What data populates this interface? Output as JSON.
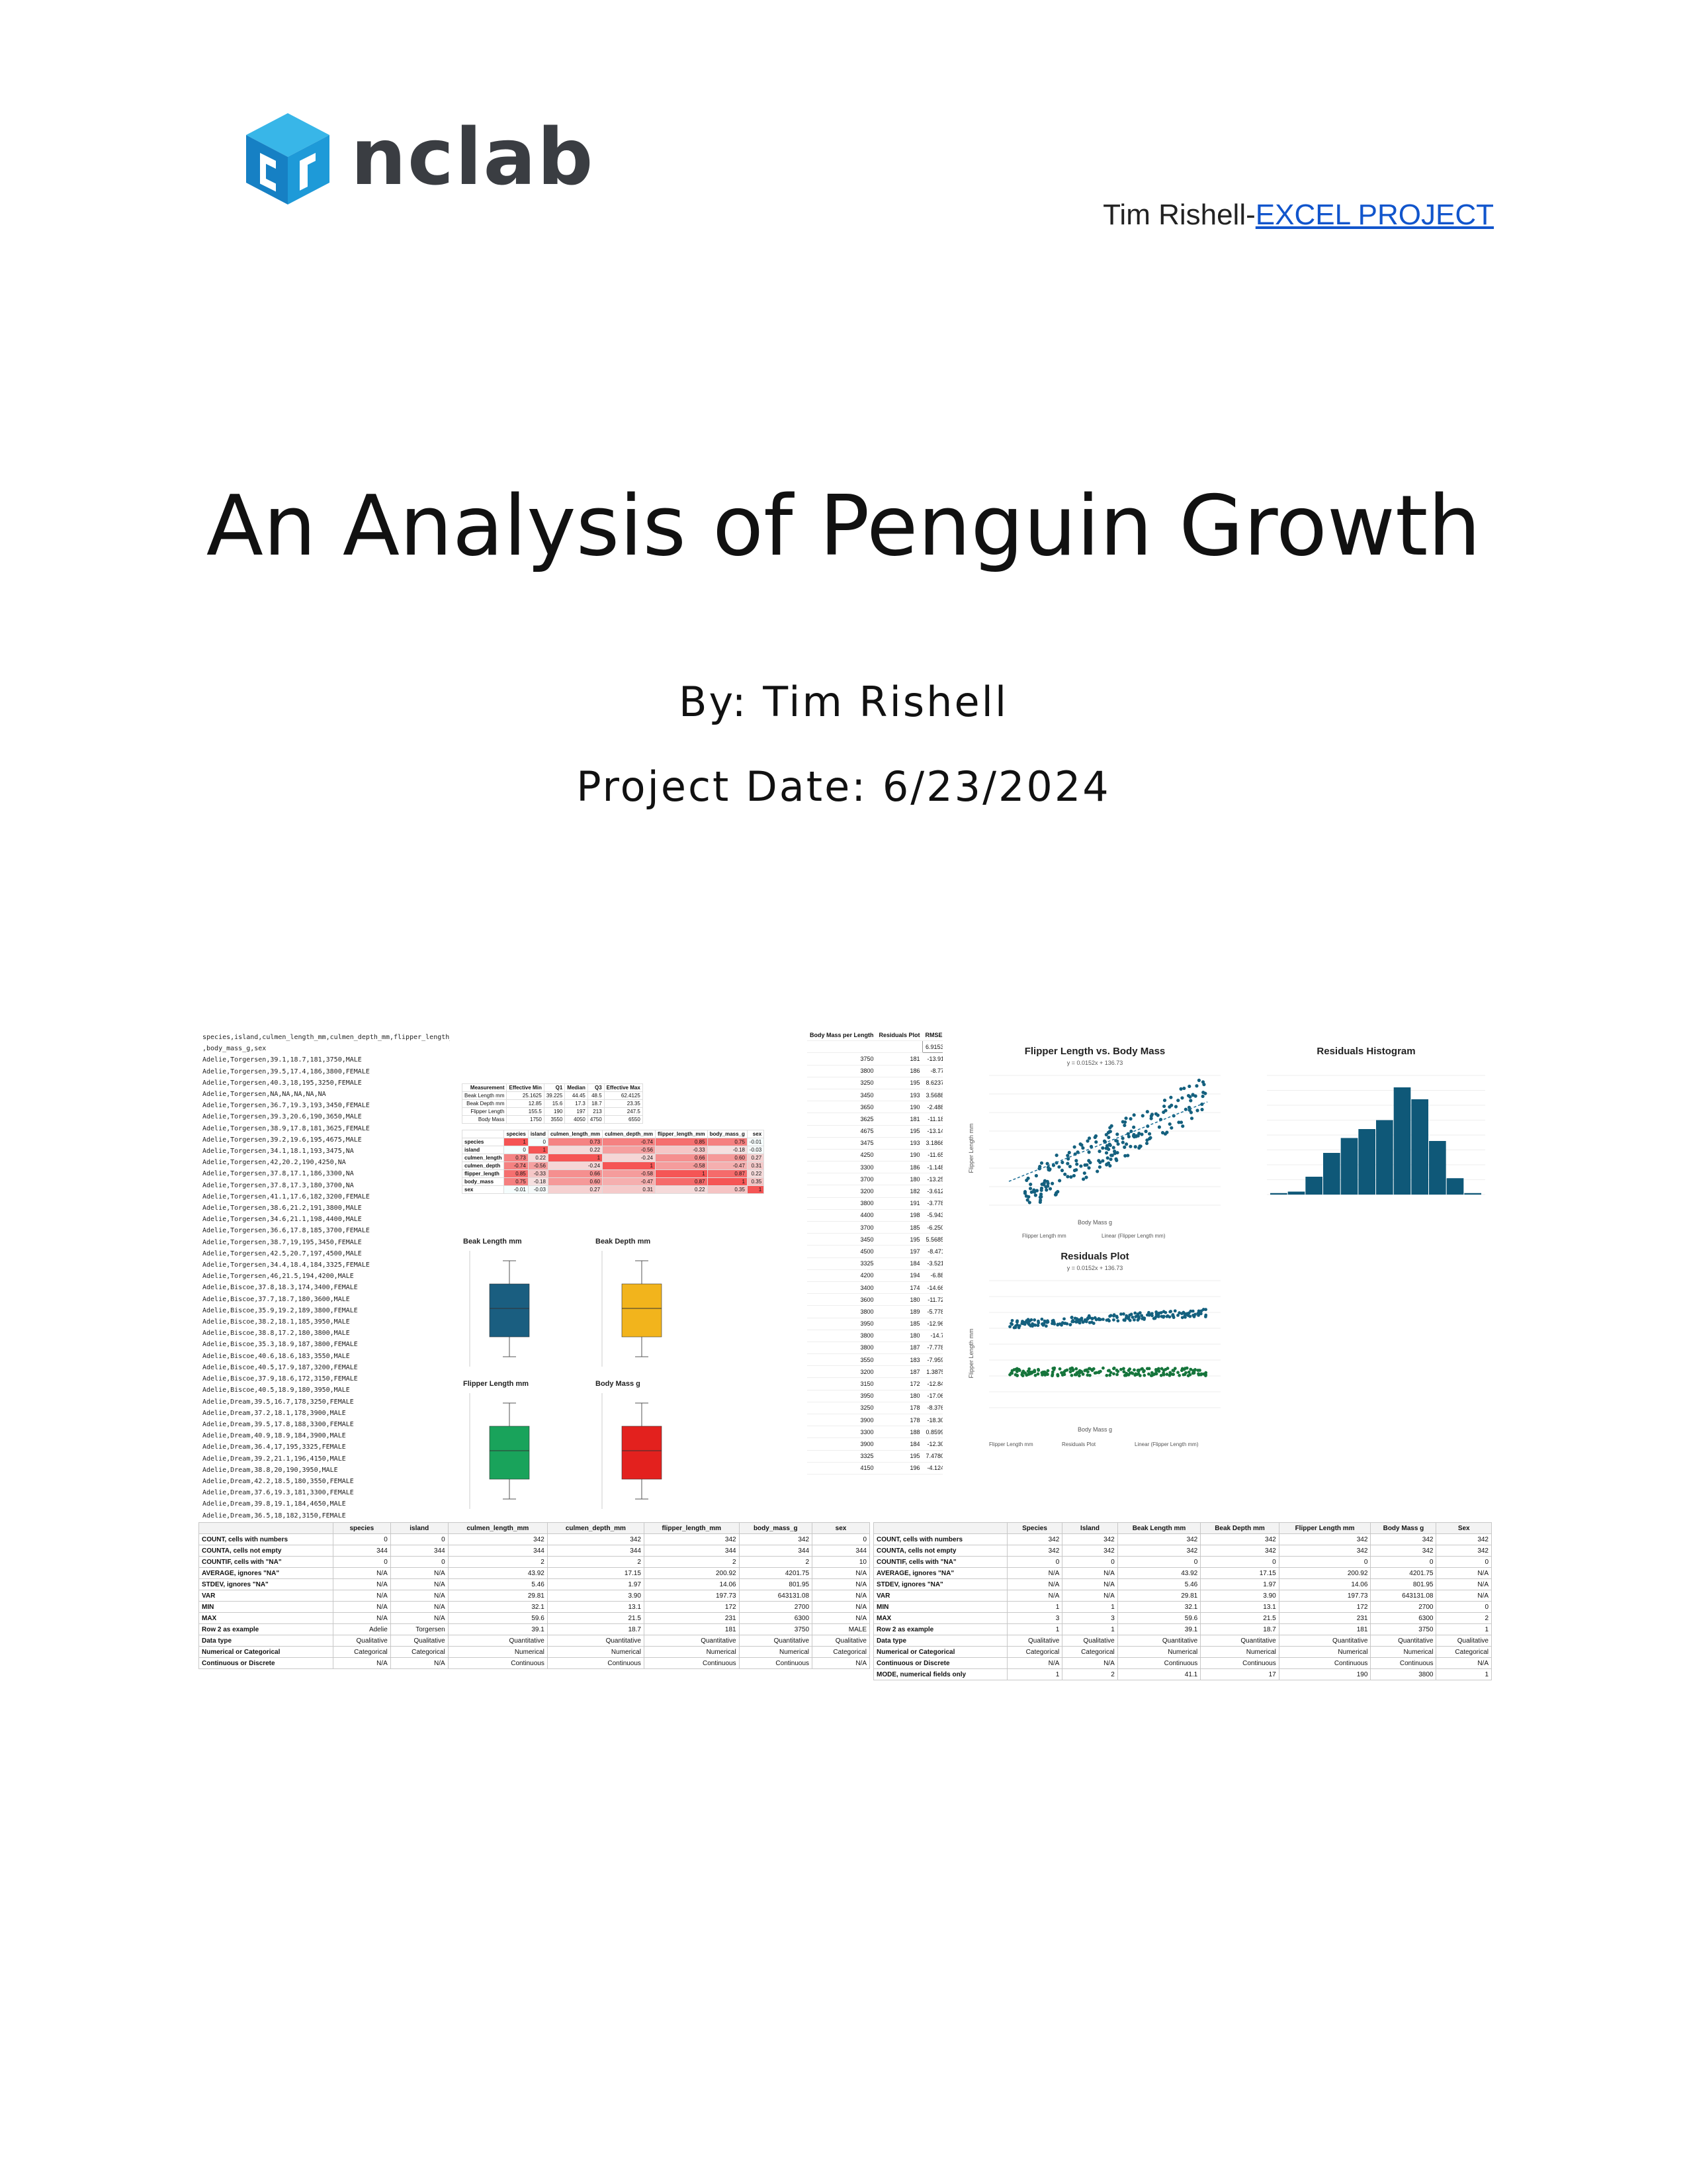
{
  "logo": {
    "wordmark": "nclab"
  },
  "header": {
    "author_prefix": "Tim Rishell-",
    "project_link": "EXCEL PROJECT"
  },
  "title": "An Analysis of Penguin Growth",
  "byline": "By: Tim Rishell",
  "project_date": "Project Date: 6/23/2024",
  "collage": {
    "csv_lines": [
      "species,island,culmen_length_mm,culmen_depth_mm,flipper_length_mm",
      ",body_mass_g,sex",
      "Adelie,Torgersen,39.1,18.7,181,3750,MALE",
      "Adelie,Torgersen,39.5,17.4,186,3800,FEMALE",
      "Adelie,Torgersen,40.3,18,195,3250,FEMALE",
      "Adelie,Torgersen,NA,NA,NA,NA,NA",
      "Adelie,Torgersen,36.7,19.3,193,3450,FEMALE",
      "Adelie,Torgersen,39.3,20.6,190,3650,MALE",
      "Adelie,Torgersen,38.9,17.8,181,3625,FEMALE",
      "Adelie,Torgersen,39.2,19.6,195,4675,MALE",
      "Adelie,Torgersen,34.1,18.1,193,3475,NA",
      "Adelie,Torgersen,42,20.2,190,4250,NA",
      "Adelie,Torgersen,37.8,17.1,186,3300,NA",
      "Adelie,Torgersen,37.8,17.3,180,3700,NA",
      "Adelie,Torgersen,41.1,17.6,182,3200,FEMALE",
      "Adelie,Torgersen,38.6,21.2,191,3800,MALE",
      "Adelie,Torgersen,34.6,21.1,198,4400,MALE",
      "Adelie,Torgersen,36.6,17.8,185,3700,FEMALE",
      "Adelie,Torgersen,38.7,19,195,3450,FEMALE",
      "Adelie,Torgersen,42.5,20.7,197,4500,MALE",
      "Adelie,Torgersen,34.4,18.4,184,3325,FEMALE",
      "Adelie,Torgersen,46,21.5,194,4200,MALE",
      "Adelie,Biscoe,37.8,18.3,174,3400,FEMALE",
      "Adelie,Biscoe,37.7,18.7,180,3600,MALE",
      "Adelie,Biscoe,35.9,19.2,189,3800,FEMALE",
      "Adelie,Biscoe,38.2,18.1,185,3950,MALE",
      "Adelie,Biscoe,38.8,17.2,180,3800,MALE",
      "Adelie,Biscoe,35.3,18.9,187,3800,FEMALE",
      "Adelie,Biscoe,40.6,18.6,183,3550,MALE",
      "Adelie,Biscoe,40.5,17.9,187,3200,FEMALE",
      "Adelie,Biscoe,37.9,18.6,172,3150,FEMALE",
      "Adelie,Biscoe,40.5,18.9,180,3950,MALE",
      "Adelie,Dream,39.5,16.7,178,3250,FEMALE",
      "Adelie,Dream,37.2,18.1,178,3900,MALE",
      "Adelie,Dream,39.5,17.8,188,3300,FEMALE",
      "Adelie,Dream,40.9,18.9,184,3900,MALE",
      "Adelie,Dream,36.4,17,195,3325,FEMALE",
      "Adelie,Dream,39.2,21.1,196,4150,MALE",
      "Adelie,Dream,38.8,20,190,3950,MALE",
      "Adelie,Dream,42.2,18.5,180,3550,FEMALE",
      "Adelie,Dream,37.6,19.3,181,3300,FEMALE",
      "Adelie,Dream,39.8,19.1,184,4650,MALE",
      "Adelie,Dream,36.5,18,182,3150,FEMALE",
      "Adelie,Dream,40.8,18.4,195,3900,MALE"
    ],
    "residuals_header": [
      "Body Mass per Length",
      "Residuals Plot",
      "RMSE"
    ],
    "rmse": "6.915393",
    "residual_rows": [
      [
        "3750",
        "181",
        "-13.9142"
      ],
      [
        "3800",
        "186",
        "-8.7784"
      ],
      [
        "3250",
        "195",
        "8.623715"
      ],
      [
        "3450",
        "193",
        "3.568832"
      ],
      [
        "3650",
        "190",
        "-2.48865"
      ],
      [
        "3625",
        "181",
        "-11.1848"
      ],
      [
        "4675",
        "195",
        "-13.1445"
      ],
      [
        "3475",
        "193",
        "3.186634"
      ],
      [
        "4250",
        "190",
        "-11.6522"
      ],
      [
        "3300",
        "186",
        "-1.14808"
      ],
      [
        "3700",
        "180",
        "-13.2564"
      ],
      [
        "3200",
        "182",
        "-3.61249"
      ],
      [
        "3800",
        "191",
        "-3.77804"
      ],
      [
        "4400",
        "198",
        "-5.94309"
      ],
      [
        "3700",
        "185",
        "-6.25045"
      ],
      [
        "3450",
        "195",
        "5.568532"
      ],
      [
        "4500",
        "197",
        "-8.47118"
      ],
      [
        "3325",
        "184",
        "-3.52198"
      ],
      [
        "4200",
        "194",
        "-6.8884"
      ],
      [
        "3400",
        "174",
        "-14.6677"
      ],
      [
        "3600",
        "180",
        "-11.7229"
      ],
      [
        "3800",
        "189",
        "-5.77804"
      ],
      [
        "3950",
        "185",
        "-12.9694"
      ],
      [
        "3800",
        "180",
        "-14.778"
      ],
      [
        "3800",
        "187",
        "-7.77804"
      ],
      [
        "3550",
        "183",
        "-7.95900"
      ],
      [
        "3200",
        "187",
        "1.387511"
      ],
      [
        "3150",
        "172",
        "-12.8467"
      ],
      [
        "3950",
        "180",
        "-17.0694"
      ],
      [
        "3250",
        "178",
        "-8.37620"
      ],
      [
        "3900",
        "178",
        "-18.3056"
      ],
      [
        "3300",
        "188",
        "0.859919"
      ],
      [
        "3900",
        "184",
        "-12.3056"
      ],
      [
        "3325",
        "195",
        "7.478021"
      ],
      [
        "4150",
        "196",
        "-4.12461"
      ]
    ],
    "stats_header": [
      "Measurement",
      "Effective Min",
      "Q1",
      "Median",
      "Q3",
      "Effective Max"
    ],
    "stats_rows": [
      [
        "Beak Length mm",
        "25.1625",
        "39.225",
        "44.45",
        "48.5",
        "62.4125"
      ],
      [
        "Beak Depth mm",
        "12.85",
        "15.6",
        "17.3",
        "18.7",
        "23.35"
      ],
      [
        "Flipper Length",
        "155.5",
        "190",
        "197",
        "213",
        "247.5"
      ],
      [
        "Body Mass",
        "1750",
        "3550",
        "4050",
        "4750",
        "6550"
      ]
    ],
    "corr_header": [
      "",
      "species",
      "island",
      "culmen_length_mm",
      "culmen_depth_mm",
      "flipper_length_mm",
      "body_mass_g",
      "sex"
    ],
    "corr_rows": [
      [
        "species",
        "1",
        "0",
        "0.73",
        "-0.74",
        "0.85",
        "0.75",
        "-0.01"
      ],
      [
        "island",
        "0",
        "1",
        "0.22",
        "-0.56",
        "-0.33",
        "-0.18",
        "-0.03"
      ],
      [
        "culmen_length",
        "0.73",
        "0.22",
        "1",
        "-0.24",
        "0.66",
        "0.60",
        "0.27"
      ],
      [
        "culmen_depth",
        "-0.74",
        "-0.56",
        "-0.24",
        "1",
        "-0.58",
        "-0.47",
        "0.31"
      ],
      [
        "flipper_length",
        "0.85",
        "-0.33",
        "0.66",
        "-0.58",
        "1",
        "0.87",
        "0.22"
      ],
      [
        "body_mass",
        "0.75",
        "-0.18",
        "0.60",
        "-0.47",
        "0.87",
        "1",
        "0.35"
      ],
      [
        "sex",
        "-0.01",
        "-0.03",
        "0.27",
        "0.31",
        "0.22",
        "0.35",
        "1"
      ]
    ],
    "boxplots": [
      {
        "title": "Beak Length mm",
        "color": "#1a5e80"
      },
      {
        "title": "Beak Depth mm",
        "color": "#f2b41c"
      },
      {
        "title": "Flipper Length mm",
        "color": "#19a35b"
      },
      {
        "title": "Body Mass g",
        "color": "#e3211e"
      }
    ],
    "scatter1": {
      "title": "Flipper Length vs. Body Mass",
      "equation": "y = 0.0152x + 136.73",
      "xlabel": "Body Mass g",
      "ylabel": "Flipper Length mm",
      "legend": [
        "Flipper Length mm",
        "Linear (Flipper Length mm)"
      ],
      "color": "#14607e"
    },
    "histogram": {
      "title": "Residuals Histogram",
      "values": [
        1,
        2,
        12,
        28,
        38,
        44,
        50,
        72,
        64,
        36,
        11,
        1
      ],
      "color": "#0f5878"
    },
    "scatter2": {
      "title": "Residuals Plot",
      "equation": "y = 0.0152x + 136.73",
      "xlabel": "Body Mass g",
      "ylabel": "Flipper Length mm",
      "legend": [
        "Flipper Length mm",
        "Residuals Plot",
        "Linear (Flipper Length mm)"
      ],
      "color1": "#14607e",
      "color2": "#16753c"
    },
    "left_table": {
      "header": [
        "",
        "species",
        "island",
        "culmen_length_mm",
        "culmen_depth_mm",
        "flipper_length_mm",
        "body_mass_g",
        "sex"
      ],
      "rows": [
        [
          "COUNT, cells with numbers",
          "0",
          "0",
          "342",
          "342",
          "342",
          "342",
          "0"
        ],
        [
          "COUNTA, cells not empty",
          "344",
          "344",
          "344",
          "344",
          "344",
          "344",
          "344"
        ],
        [
          "COUNTIF, cells with \"NA\"",
          "0",
          "0",
          "2",
          "2",
          "2",
          "2",
          "10"
        ],
        [
          "AVERAGE, ignores \"NA\"",
          "N/A",
          "N/A",
          "43.92",
          "17.15",
          "200.92",
          "4201.75",
          "N/A"
        ],
        [
          "STDEV, ignores \"NA\"",
          "N/A",
          "N/A",
          "5.46",
          "1.97",
          "14.06",
          "801.95",
          "N/A"
        ],
        [
          "VAR",
          "N/A",
          "N/A",
          "29.81",
          "3.90",
          "197.73",
          "643131.08",
          "N/A"
        ],
        [
          "MIN",
          "N/A",
          "N/A",
          "32.1",
          "13.1",
          "172",
          "2700",
          "N/A"
        ],
        [
          "MAX",
          "N/A",
          "N/A",
          "59.6",
          "21.5",
          "231",
          "6300",
          "N/A"
        ],
        [
          "Row 2 as example",
          "Adelie",
          "Torgersen",
          "39.1",
          "18.7",
          "181",
          "3750",
          "MALE"
        ],
        [
          "Data type",
          "Qualitative",
          "Qualitative",
          "Quantitative",
          "Quantitative",
          "Quantitative",
          "Quantitative",
          "Qualitative"
        ],
        [
          "Numerical or Categorical",
          "Categorical",
          "Categorical",
          "Numerical",
          "Numerical",
          "Numerical",
          "Numerical",
          "Categorical"
        ],
        [
          "Continuous or Discrete",
          "N/A",
          "N/A",
          "Continuous",
          "Continuous",
          "Continuous",
          "Continuous",
          "N/A"
        ]
      ]
    },
    "right_table": {
      "header": [
        "",
        "Species",
        "Island",
        "Beak Length mm",
        "Beak Depth mm",
        "Flipper Length mm",
        "Body Mass g",
        "Sex"
      ],
      "rows": [
        [
          "COUNT, cells with numbers",
          "342",
          "342",
          "342",
          "342",
          "342",
          "342",
          "342"
        ],
        [
          "COUNTA, cells not empty",
          "342",
          "342",
          "342",
          "342",
          "342",
          "342",
          "342"
        ],
        [
          "COUNTIF, cells with \"NA\"",
          "0",
          "0",
          "0",
          "0",
          "0",
          "0",
          "0"
        ],
        [
          "AVERAGE, ignores \"NA\"",
          "N/A",
          "N/A",
          "43.92",
          "17.15",
          "200.92",
          "4201.75",
          "N/A"
        ],
        [
          "STDEV, ignores \"NA\"",
          "N/A",
          "N/A",
          "5.46",
          "1.97",
          "14.06",
          "801.95",
          "N/A"
        ],
        [
          "VAR",
          "N/A",
          "N/A",
          "29.81",
          "3.90",
          "197.73",
          "643131.08",
          "N/A"
        ],
        [
          "MIN",
          "1",
          "1",
          "32.1",
          "13.1",
          "172",
          "2700",
          "0"
        ],
        [
          "MAX",
          "3",
          "3",
          "59.6",
          "21.5",
          "231",
          "6300",
          "2"
        ],
        [
          "Row 2 as example",
          "1",
          "1",
          "39.1",
          "18.7",
          "181",
          "3750",
          "1"
        ],
        [
          "Data type",
          "Qualitative",
          "Qualitative",
          "Quantitative",
          "Quantitative",
          "Quantitative",
          "Quantitative",
          "Qualitative"
        ],
        [
          "Numerical or Categorical",
          "Categorical",
          "Categorical",
          "Numerical",
          "Numerical",
          "Numerical",
          "Numerical",
          "Categorical"
        ],
        [
          "Continuous or Discrete",
          "N/A",
          "N/A",
          "Continuous",
          "Continuous",
          "Continuous",
          "Continuous",
          "N/A"
        ],
        [
          "MODE, numerical fields only",
          "1",
          "2",
          "41.1",
          "17",
          "190",
          "3800",
          "1"
        ]
      ]
    }
  }
}
